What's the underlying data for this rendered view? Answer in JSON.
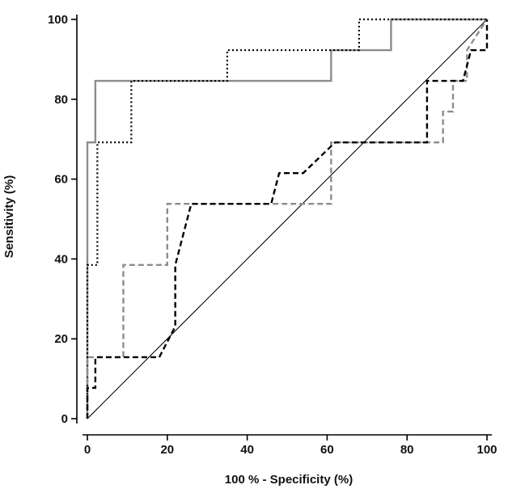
{
  "chart_data": {
    "type": "line",
    "xlabel": "100 % - Specificity (%)",
    "ylabel": "Sensitivity (%)",
    "xlim": [
      0,
      100
    ],
    "ylim": [
      0,
      100
    ],
    "x_ticks": [
      0,
      20,
      40,
      60,
      80,
      100
    ],
    "y_ticks": [
      0,
      20,
      40,
      60,
      80,
      100
    ],
    "grid": false,
    "reference_line": {
      "x": [
        0,
        100
      ],
      "y": [
        0,
        100
      ],
      "color": "#000000",
      "style": "solid"
    },
    "series": [
      {
        "color": "#8c8c8c",
        "style": "solid",
        "x": [
          0,
          0,
          2,
          2,
          61,
          61,
          76,
          76,
          100
        ],
        "y": [
          0,
          69.2,
          69.2,
          84.6,
          84.6,
          92.3,
          92.3,
          100,
          100
        ]
      },
      {
        "color": "#000000",
        "style": "dotted",
        "x": [
          0,
          0,
          2.5,
          2.5,
          11,
          11,
          35,
          35,
          68,
          68,
          100
        ],
        "y": [
          0,
          38.5,
          38.5,
          69.2,
          69.2,
          84.6,
          84.6,
          92.3,
          92.3,
          100,
          100
        ]
      },
      {
        "color": "#8c8c8c",
        "style": "dashed",
        "x": [
          0,
          0,
          9,
          9,
          20,
          20,
          61,
          61,
          89,
          89,
          91.5,
          91.5,
          95,
          95,
          100
        ],
        "y": [
          0,
          15.4,
          15.4,
          38.5,
          38.5,
          53.8,
          53.8,
          69.2,
          69.2,
          76.9,
          76.9,
          84.6,
          84.6,
          92.3,
          100
        ]
      },
      {
        "color": "#000000",
        "style": "dashed",
        "x": [
          0,
          0,
          2,
          2,
          18,
          22,
          22,
          26,
          46,
          48,
          54,
          62,
          85,
          85,
          94,
          96,
          96,
          100,
          100
        ],
        "y": [
          0,
          7.7,
          7.7,
          15.4,
          15.4,
          23.1,
          38.5,
          53.8,
          53.8,
          61.5,
          61.5,
          69.2,
          69.2,
          84.6,
          84.6,
          92.3,
          92.3,
          92.3,
          100
        ]
      }
    ]
  }
}
